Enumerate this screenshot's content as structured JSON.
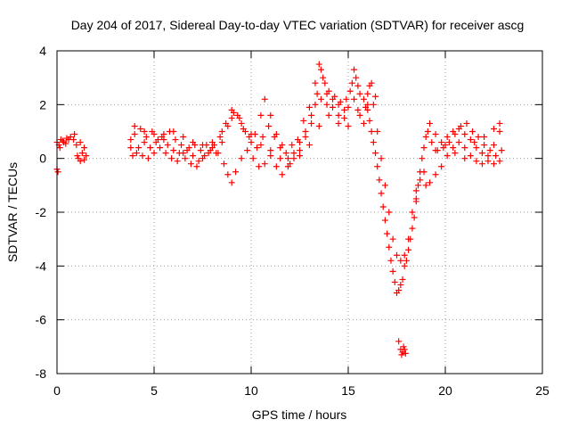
{
  "chart_data": {
    "type": "scatter",
    "title": "Day 204 of 2017, Sidereal Day-to-day VTEC variation (SDTVAR) for receiver ascg",
    "xlabel": "GPS time / hours",
    "ylabel": "SDTVAR / TECUs",
    "xlim": [
      0,
      25
    ],
    "ylim": [
      -8,
      4
    ],
    "x_ticks": [
      0,
      5,
      10,
      15,
      20,
      25
    ],
    "y_ticks": [
      -8,
      -6,
      -4,
      -2,
      0,
      2,
      4
    ],
    "x_tick_labels": [
      "0",
      "5",
      "10",
      "15",
      "20",
      "25"
    ],
    "y_tick_labels": [
      "-8",
      "-6",
      "-4",
      "-2",
      "0",
      "2",
      "4"
    ],
    "grid": true,
    "marker": "+",
    "color": "#ff0000",
    "series": [
      {
        "values": [
          [
            0.0,
            -0.4
          ],
          [
            0.05,
            -0.5
          ],
          [
            0.1,
            0.5
          ],
          [
            0.2,
            0.7
          ],
          [
            0.35,
            0.6
          ],
          [
            0.5,
            0.75
          ],
          [
            0.7,
            0.8
          ],
          [
            0.85,
            0.7
          ],
          [
            0.0,
            0.6
          ],
          [
            0.15,
            0.4
          ],
          [
            0.3,
            0.65
          ],
          [
            0.45,
            0.55
          ],
          [
            0.6,
            0.7
          ],
          [
            0.9,
            0.9
          ],
          [
            1.0,
            0.5
          ],
          [
            1.05,
            0.1
          ],
          [
            1.1,
            0.0
          ],
          [
            1.2,
            -0.1
          ],
          [
            1.3,
            0.2
          ],
          [
            1.4,
            0.4
          ],
          [
            1.5,
            0.1
          ],
          [
            1.2,
            0.6
          ],
          [
            1.4,
            -0.05
          ],
          [
            3.8,
            0.4
          ],
          [
            4.0,
            0.9
          ],
          [
            4.3,
            1.1
          ],
          [
            4.6,
            0.8
          ],
          [
            4.9,
            1.0
          ],
          [
            5.2,
            0.7
          ],
          [
            5.5,
            0.9
          ],
          [
            5.8,
            1.0
          ],
          [
            6.1,
            0.7
          ],
          [
            6.4,
            0.5
          ],
          [
            6.7,
            0.3
          ],
          [
            7.0,
            0.1
          ],
          [
            7.3,
            -0.1
          ],
          [
            7.6,
            0.1
          ],
          [
            7.9,
            0.3
          ],
          [
            8.2,
            0.2
          ],
          [
            8.5,
            0.6
          ],
          [
            8.8,
            1.2
          ],
          [
            9.1,
            1.7
          ],
          [
            9.4,
            1.5
          ],
          [
            9.7,
            1.0
          ],
          [
            10.0,
            0.6
          ],
          [
            10.3,
            0.4
          ],
          [
            10.6,
            0.8
          ],
          [
            10.9,
            1.2
          ],
          [
            11.2,
            0.8
          ],
          [
            11.5,
            0.4
          ],
          [
            11.8,
            0.2
          ],
          [
            12.1,
            0.5
          ],
          [
            12.4,
            0.7
          ],
          [
            12.7,
            1.4
          ],
          [
            13.0,
            1.9
          ],
          [
            13.3,
            2.8
          ],
          [
            13.5,
            3.5
          ],
          [
            13.7,
            3.0
          ],
          [
            13.9,
            2.4
          ],
          [
            14.2,
            2.2
          ],
          [
            14.5,
            2.0
          ],
          [
            14.8,
            1.8
          ],
          [
            15.1,
            2.5
          ],
          [
            15.3,
            3.3
          ],
          [
            15.5,
            2.7
          ],
          [
            15.8,
            2.2
          ],
          [
            16.0,
            1.8
          ],
          [
            16.2,
            1.0
          ],
          [
            16.4,
            0.2
          ],
          [
            16.6,
            -0.8
          ],
          [
            16.8,
            -1.8
          ],
          [
            17.0,
            -2.8
          ],
          [
            17.2,
            -3.8
          ],
          [
            17.4,
            -4.6
          ],
          [
            17.6,
            -4.9
          ],
          [
            17.8,
            -4.5
          ],
          [
            18.0,
            -3.8
          ],
          [
            18.2,
            -3.0
          ],
          [
            18.4,
            -2.2
          ],
          [
            18.6,
            -1.0
          ],
          [
            18.8,
            0.0
          ],
          [
            19.0,
            0.8
          ],
          [
            19.2,
            1.3
          ],
          [
            19.5,
            0.9
          ],
          [
            19.8,
            0.6
          ],
          [
            20.1,
            0.8
          ],
          [
            20.4,
            1.0
          ],
          [
            20.7,
            1.1
          ],
          [
            21.0,
            0.9
          ],
          [
            21.3,
            0.7
          ],
          [
            21.6,
            0.4
          ],
          [
            21.9,
            0.2
          ],
          [
            22.2,
            -0.1
          ],
          [
            22.5,
            -0.2
          ],
          [
            22.8,
            -0.1
          ],
          [
            3.9,
            0.1
          ],
          [
            4.2,
            0.4
          ],
          [
            4.5,
            0.6
          ],
          [
            4.8,
            0.4
          ],
          [
            5.1,
            0.6
          ],
          [
            5.4,
            0.8
          ],
          [
            5.7,
            0.5
          ],
          [
            6.0,
            0.3
          ],
          [
            6.3,
            0.2
          ],
          [
            6.6,
            0.0
          ],
          [
            6.9,
            -0.2
          ],
          [
            7.2,
            -0.3
          ],
          [
            7.5,
            0.0
          ],
          [
            7.8,
            0.2
          ],
          [
            8.1,
            0.5
          ],
          [
            8.4,
            0.8
          ],
          [
            8.7,
            1.3
          ],
          [
            9.0,
            1.8
          ],
          [
            9.3,
            1.6
          ],
          [
            9.6,
            1.1
          ],
          [
            9.9,
            0.8
          ],
          [
            10.2,
            0.9
          ],
          [
            10.5,
            1.6
          ],
          [
            10.7,
            2.2
          ],
          [
            11.0,
            1.6
          ],
          [
            11.3,
            0.9
          ],
          [
            11.6,
            0.5
          ],
          [
            11.9,
            0.0
          ],
          [
            12.2,
            0.2
          ],
          [
            12.5,
            0.6
          ],
          [
            12.8,
            1.0
          ],
          [
            13.1,
            1.6
          ],
          [
            13.4,
            2.4
          ],
          [
            13.6,
            3.3
          ],
          [
            13.8,
            2.8
          ],
          [
            14.0,
            2.5
          ],
          [
            14.3,
            2.3
          ],
          [
            14.6,
            2.1
          ],
          [
            14.9,
            2.2
          ],
          [
            15.2,
            2.8
          ],
          [
            15.4,
            3.0
          ],
          [
            15.6,
            2.4
          ],
          [
            15.9,
            1.9
          ],
          [
            16.1,
            1.4
          ],
          [
            16.3,
            0.6
          ],
          [
            16.5,
            -0.3
          ],
          [
            16.7,
            -1.3
          ],
          [
            16.9,
            -2.3
          ],
          [
            17.1,
            -3.3
          ],
          [
            17.3,
            -4.2
          ],
          [
            17.5,
            -5.0
          ],
          [
            17.7,
            -4.7
          ],
          [
            17.9,
            -4.0
          ],
          [
            18.1,
            -3.4
          ],
          [
            18.3,
            -2.6
          ],
          [
            18.5,
            -1.6
          ],
          [
            18.7,
            -0.5
          ],
          [
            18.9,
            0.4
          ],
          [
            19.1,
            1.0
          ],
          [
            19.3,
            0.6
          ],
          [
            19.6,
            0.3
          ],
          [
            19.9,
            0.4
          ],
          [
            20.2,
            0.6
          ],
          [
            20.5,
            0.9
          ],
          [
            20.8,
            1.2
          ],
          [
            21.1,
            1.3
          ],
          [
            21.4,
            1.0
          ],
          [
            21.7,
            0.8
          ],
          [
            22.0,
            0.5
          ],
          [
            22.3,
            0.3
          ],
          [
            22.6,
            0.1
          ],
          [
            22.9,
            0.3
          ],
          [
            3.8,
            0.7
          ],
          [
            4.1,
            0.2
          ],
          [
            4.4,
            0.1
          ],
          [
            4.7,
            0.0
          ],
          [
            5.0,
            0.2
          ],
          [
            5.3,
            0.4
          ],
          [
            5.6,
            0.2
          ],
          [
            5.9,
            0.0
          ],
          [
            6.2,
            -0.1
          ],
          [
            6.5,
            0.2
          ],
          [
            6.8,
            0.4
          ],
          [
            7.1,
            0.5
          ],
          [
            7.4,
            0.3
          ],
          [
            7.7,
            0.5
          ],
          [
            8.0,
            0.4
          ],
          [
            8.3,
            0.2
          ],
          [
            8.6,
            -0.2
          ],
          [
            8.8,
            -0.6
          ],
          [
            9.0,
            -0.9
          ],
          [
            9.2,
            -0.5
          ],
          [
            9.5,
            0.0
          ],
          [
            9.8,
            0.3
          ],
          [
            10.1,
            0.0
          ],
          [
            10.4,
            -0.3
          ],
          [
            10.7,
            -0.2
          ],
          [
            11.0,
            0.1
          ],
          [
            11.3,
            -0.3
          ],
          [
            11.6,
            -0.6
          ],
          [
            11.9,
            -0.3
          ],
          [
            12.2,
            0.0
          ],
          [
            12.5,
            0.3
          ],
          [
            12.8,
            0.8
          ],
          [
            13.1,
            1.3
          ],
          [
            13.3,
            2.0
          ],
          [
            13.6,
            2.2
          ],
          [
            13.9,
            2.0
          ],
          [
            14.2,
            1.9
          ],
          [
            14.5,
            1.6
          ],
          [
            14.8,
            1.5
          ],
          [
            15.0,
            1.9
          ],
          [
            15.3,
            2.2
          ],
          [
            15.6,
            1.6
          ],
          [
            15.8,
            1.3
          ],
          [
            16.0,
            2.0
          ],
          [
            16.1,
            2.7
          ],
          [
            16.3,
            2.0
          ],
          [
            16.5,
            1.0
          ],
          [
            16.7,
            0.0
          ],
          [
            16.9,
            -1.0
          ],
          [
            17.1,
            -2.0
          ],
          [
            17.3,
            -3.0
          ],
          [
            17.5,
            -3.6
          ],
          [
            17.7,
            -3.8
          ],
          [
            17.9,
            -3.6
          ],
          [
            18.1,
            -3.0
          ],
          [
            18.3,
            -2.0
          ],
          [
            18.5,
            -1.2
          ],
          [
            18.7,
            -0.8
          ],
          [
            18.9,
            -0.5
          ],
          [
            19.2,
            -0.9
          ],
          [
            19.5,
            -0.6
          ],
          [
            19.8,
            -0.3
          ],
          [
            20.1,
            0.1
          ],
          [
            20.4,
            0.4
          ],
          [
            20.7,
            0.6
          ],
          [
            21.0,
            0.4
          ],
          [
            21.3,
            0.1
          ],
          [
            21.6,
            -0.1
          ],
          [
            21.9,
            -0.2
          ],
          [
            22.2,
            0.1
          ],
          [
            22.5,
            0.5
          ],
          [
            22.8,
            1.0
          ],
          [
            4.0,
            1.2
          ],
          [
            4.5,
            1.0
          ],
          [
            5.0,
            0.9
          ],
          [
            5.5,
            0.7
          ],
          [
            6.0,
            1.0
          ],
          [
            6.5,
            0.8
          ],
          [
            7.0,
            0.6
          ],
          [
            7.5,
            0.5
          ],
          [
            8.0,
            0.6
          ],
          [
            8.5,
            1.0
          ],
          [
            9.0,
            1.5
          ],
          [
            9.5,
            1.3
          ],
          [
            10.0,
            0.9
          ],
          [
            10.5,
            0.5
          ],
          [
            11.0,
            0.3
          ],
          [
            11.5,
            0.0
          ],
          [
            12.0,
            -0.2
          ],
          [
            12.5,
            0.1
          ],
          [
            13.0,
            0.5
          ],
          [
            13.5,
            1.2
          ],
          [
            14.0,
            1.6
          ],
          [
            14.5,
            1.3
          ],
          [
            15.0,
            1.2
          ],
          [
            15.5,
            1.8
          ],
          [
            16.0,
            2.4
          ],
          [
            16.2,
            2.8
          ],
          [
            16.4,
            2.3
          ],
          [
            18.5,
            -1.5
          ],
          [
            19.0,
            -1.0
          ],
          [
            19.5,
            0.3
          ],
          [
            20.0,
            0.5
          ],
          [
            20.5,
            0.2
          ],
          [
            21.0,
            0.0
          ],
          [
            21.5,
            0.6
          ],
          [
            22.0,
            0.8
          ],
          [
            22.5,
            1.1
          ],
          [
            22.8,
            1.3
          ],
          [
            17.6,
            -6.8
          ],
          [
            17.7,
            -7.1
          ],
          [
            17.75,
            -7.3
          ],
          [
            17.8,
            -7.2
          ],
          [
            17.85,
            -7.0
          ],
          [
            17.9,
            -7.1
          ],
          [
            17.95,
            -7.25
          ]
        ]
      }
    ]
  }
}
